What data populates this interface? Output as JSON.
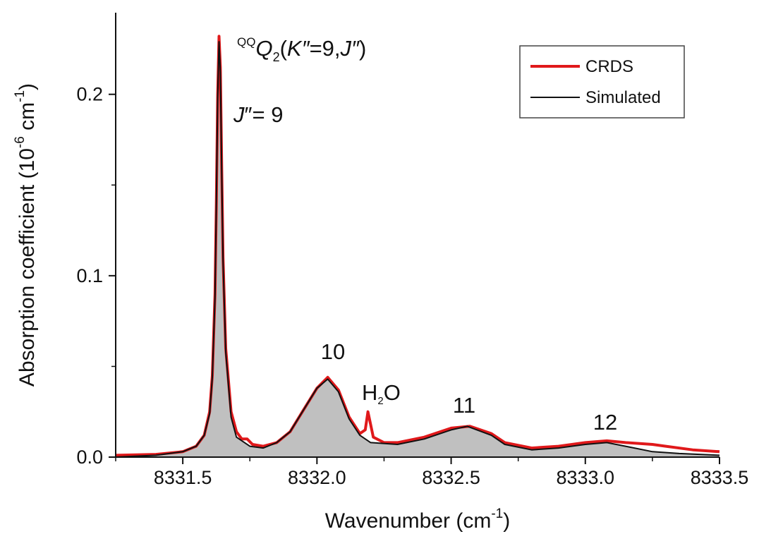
{
  "chart_data": {
    "type": "line",
    "title": "",
    "xlabel": "Wavenumber (cm",
    "xlabel_sup": "-1",
    "xlabel_close": ")",
    "ylabel": "Absorption coefficient (10",
    "ylabel_sup1": "-6",
    "ylabel_mid": " cm",
    "ylabel_sup2": "-1",
    "ylabel_close": ")",
    "xlim": [
      8331.25,
      8333.5
    ],
    "ylim": [
      0,
      0.245
    ],
    "x_ticks": [
      8331.5,
      8332.0,
      8332.5,
      8333.0,
      8333.5
    ],
    "x_tick_labels": [
      "8331.5",
      "8332.0",
      "8332.5",
      "8333.0",
      "8333.5"
    ],
    "y_ticks": [
      0.0,
      0.1,
      0.2
    ],
    "y_tick_labels": [
      "0.0",
      "0.1",
      "0.2"
    ],
    "grid": false,
    "legend_position": "top-right",
    "series": [
      {
        "name": "CRDS",
        "color": "#e0191b",
        "line_width": 4,
        "points": [
          [
            8331.25,
            0.001
          ],
          [
            8331.4,
            0.0015
          ],
          [
            8331.5,
            0.003
          ],
          [
            8331.55,
            0.006
          ],
          [
            8331.58,
            0.012
          ],
          [
            8331.6,
            0.025
          ],
          [
            8331.61,
            0.045
          ],
          [
            8331.62,
            0.09
          ],
          [
            8331.625,
            0.14
          ],
          [
            8331.63,
            0.2
          ],
          [
            8331.635,
            0.232
          ],
          [
            8331.64,
            0.215
          ],
          [
            8331.645,
            0.16
          ],
          [
            8331.65,
            0.11
          ],
          [
            8331.66,
            0.06
          ],
          [
            8331.68,
            0.025
          ],
          [
            8331.7,
            0.014
          ],
          [
            8331.72,
            0.01
          ],
          [
            8331.74,
            0.01
          ],
          [
            8331.76,
            0.007
          ],
          [
            8331.8,
            0.006
          ],
          [
            8331.85,
            0.008
          ],
          [
            8331.9,
            0.014
          ],
          [
            8331.95,
            0.026
          ],
          [
            8332.0,
            0.038
          ],
          [
            8332.04,
            0.044
          ],
          [
            8332.08,
            0.037
          ],
          [
            8332.12,
            0.022
          ],
          [
            8332.16,
            0.013
          ],
          [
            8332.18,
            0.015
          ],
          [
            8332.19,
            0.025
          ],
          [
            8332.2,
            0.018
          ],
          [
            8332.21,
            0.011
          ],
          [
            8332.25,
            0.008
          ],
          [
            8332.3,
            0.008
          ],
          [
            8332.4,
            0.011
          ],
          [
            8332.5,
            0.016
          ],
          [
            8332.57,
            0.017
          ],
          [
            8332.65,
            0.013
          ],
          [
            8332.7,
            0.008
          ],
          [
            8332.8,
            0.005
          ],
          [
            8332.9,
            0.006
          ],
          [
            8333.0,
            0.008
          ],
          [
            8333.08,
            0.009
          ],
          [
            8333.15,
            0.008
          ],
          [
            8333.25,
            0.007
          ],
          [
            8333.3,
            0.006
          ],
          [
            8333.4,
            0.004
          ],
          [
            8333.5,
            0.003
          ]
        ]
      },
      {
        "name": "Simulated",
        "color": "#111111",
        "line_width": 2,
        "fill": "#c0c0c0",
        "points": [
          [
            8331.25,
            0.0
          ],
          [
            8331.4,
            0.001
          ],
          [
            8331.5,
            0.003
          ],
          [
            8331.55,
            0.006
          ],
          [
            8331.58,
            0.012
          ],
          [
            8331.6,
            0.024
          ],
          [
            8331.61,
            0.044
          ],
          [
            8331.62,
            0.088
          ],
          [
            8331.625,
            0.14
          ],
          [
            8331.63,
            0.198
          ],
          [
            8331.635,
            0.229
          ],
          [
            8331.64,
            0.212
          ],
          [
            8331.645,
            0.158
          ],
          [
            8331.65,
            0.108
          ],
          [
            8331.66,
            0.058
          ],
          [
            8331.68,
            0.022
          ],
          [
            8331.7,
            0.011
          ],
          [
            8331.75,
            0.006
          ],
          [
            8331.8,
            0.005
          ],
          [
            8331.85,
            0.008
          ],
          [
            8331.9,
            0.014
          ],
          [
            8331.95,
            0.026
          ],
          [
            8332.0,
            0.038
          ],
          [
            8332.04,
            0.043
          ],
          [
            8332.08,
            0.036
          ],
          [
            8332.12,
            0.021
          ],
          [
            8332.16,
            0.012
          ],
          [
            8332.2,
            0.008
          ],
          [
            8332.3,
            0.007
          ],
          [
            8332.4,
            0.01
          ],
          [
            8332.5,
            0.015
          ],
          [
            8332.56,
            0.017
          ],
          [
            8332.65,
            0.012
          ],
          [
            8332.7,
            0.007
          ],
          [
            8332.8,
            0.004
          ],
          [
            8332.9,
            0.005
          ],
          [
            8333.0,
            0.007
          ],
          [
            8333.08,
            0.008
          ],
          [
            8333.15,
            0.006
          ],
          [
            8333.25,
            0.003
          ],
          [
            8333.35,
            0.002
          ],
          [
            8333.5,
            0.001
          ]
        ]
      }
    ],
    "annotations": [
      {
        "id": "q-branch",
        "sup": "QQ",
        "main": "Q",
        "sub": "2",
        "rest_open": "(",
        "k_label": "K″",
        "eq9": "=9,",
        "j_label": "J″",
        "rest_close": ")",
        "x": 8331.78,
        "y": 0.23
      },
      {
        "id": "j9",
        "j": "J",
        "rest": "″= 9",
        "x": 8331.73,
        "y": 0.188
      },
      {
        "id": "j10",
        "text": "10",
        "x": 8332.05,
        "y": 0.055
      },
      {
        "id": "h2o",
        "h": "H",
        "sub": "2",
        "o": "O",
        "color": "#1f3fcc",
        "x": 8332.22,
        "y": 0.03
      },
      {
        "id": "j11",
        "text": "11",
        "x": 8332.57,
        "y": 0.024
      },
      {
        "id": "j12",
        "text": "12",
        "x": 8333.08,
        "y": 0.014
      }
    ]
  }
}
